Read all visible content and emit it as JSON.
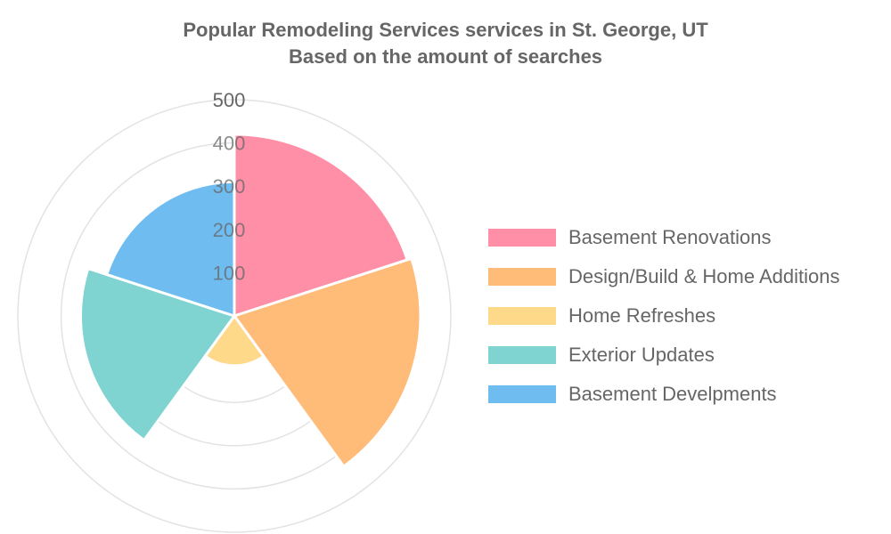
{
  "chart_data": {
    "type": "polarArea",
    "title_lines": [
      "Popular Remodeling Services services in St. George, UT",
      "Based on the amount of searches"
    ],
    "categories": [
      "Basement Renovations",
      "Design/Build & Home Additions",
      "Home Refreshes",
      "Exterior Updates",
      "Basement Develpments"
    ],
    "values": [
      420,
      430,
      115,
      355,
      310
    ],
    "colors": [
      "#ff8fa7",
      "#ffbb78",
      "#ffd98a",
      "#7fd3d1",
      "#6fbdf0"
    ],
    "radial_ticks": [
      "100",
      "200",
      "300",
      "400",
      "500"
    ],
    "r_range": [
      0,
      500
    ],
    "grid": true,
    "legend_position": "right"
  }
}
